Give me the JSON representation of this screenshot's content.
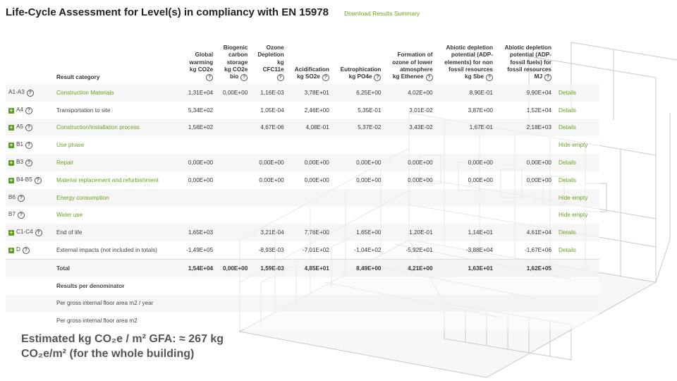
{
  "header": {
    "title": "Life-Cycle Assessment for Level(s) in compliancy with EN 15978",
    "download_link": "Download Results Summary"
  },
  "table": {
    "category_header": "Result category",
    "columns": [
      [
        "Global",
        "warming",
        "kg CO2e"
      ],
      [
        "Biogenic",
        "carbon",
        "storage",
        "kg CO2e",
        "bio"
      ],
      [
        "Ozone",
        "Depletion",
        "kg",
        "CFC11e"
      ],
      [
        "Acidification",
        "kg SO2e"
      ],
      [
        "Eutrophication",
        "kg PO4e"
      ],
      [
        "Formation of",
        "ozone of lower",
        "atmosphere",
        "kg Ethenee"
      ],
      [
        "Abiotic depletion",
        "potential (ADP-",
        "elements) for non",
        "fossil resources",
        "kg Sbe"
      ],
      [
        "Abiotic depletion",
        "potential (ADP-",
        "fossil fuels) for",
        "fossil resources",
        "MJ"
      ]
    ],
    "rows": [
      {
        "stage": "A1-A3",
        "expand": false,
        "help": true,
        "category": "Construction Materials",
        "link": true,
        "values": [
          "1,31E+04",
          "0,00E+00",
          "1,16E-03",
          "3,78E+01",
          "6,25E+00",
          "4,02E+00",
          "8,90E-01",
          "9,90E+04"
        ],
        "action": "Details"
      },
      {
        "stage": "A4",
        "expand": true,
        "help": true,
        "category": "Transportation to site",
        "link": false,
        "values": [
          "5,34E+02",
          "",
          "1,05E-04",
          "2,46E+00",
          "5,35E-01",
          "3,01E-02",
          "3,87E+00",
          "1,52E+04"
        ],
        "action": "Details"
      },
      {
        "stage": "A5",
        "expand": true,
        "help": true,
        "category": "Construction/installation process",
        "link": true,
        "values": [
          "1,56E+02",
          "",
          "4,67E-06",
          "4,08E-01",
          "5,37E-02",
          "3,43E-02",
          "1,67E-01",
          "2,18E+03"
        ],
        "action": "Details"
      },
      {
        "stage": "B1",
        "expand": true,
        "help": true,
        "category": "Use phase",
        "link": true,
        "values": [
          "",
          "",
          "",
          "",
          "",
          "",
          "",
          ""
        ],
        "action": "Hide empty"
      },
      {
        "stage": "B3",
        "expand": true,
        "help": true,
        "category": "Repair",
        "link": true,
        "values": [
          "0,00E+00",
          "",
          "0,00E+00",
          "0,00E+00",
          "0,00E+00",
          "0,00E+00",
          "0,00E+00",
          "0,00E+00"
        ],
        "action": "Details"
      },
      {
        "stage": "B4-B5",
        "expand": true,
        "help": true,
        "category": "Material replacement and refurbishment",
        "link": true,
        "values": [
          "0,00E+00",
          "",
          "0,00E+00",
          "0,00E+00",
          "0,00E+00",
          "0,00E+00",
          "0,00E+00",
          "0,00E+00"
        ],
        "action": "Details"
      },
      {
        "stage": "B6",
        "expand": false,
        "help": true,
        "category": "Energy consumption",
        "link": true,
        "values": [
          "",
          "",
          "",
          "",
          "",
          "",
          "",
          ""
        ],
        "action": "Hide empty"
      },
      {
        "stage": "B7",
        "expand": false,
        "help": true,
        "category": "Water use",
        "link": true,
        "values": [
          "",
          "",
          "",
          "",
          "",
          "",
          "",
          ""
        ],
        "action": "Hide empty"
      },
      {
        "stage": "C1-C4",
        "expand": true,
        "help": true,
        "category": "End of life",
        "link": false,
        "values": [
          "1,65E+03",
          "",
          "3,21E-04",
          "7,76E+00",
          "1,65E+00",
          "1,20E-01",
          "1,14E+01",
          "4,61E+04"
        ],
        "action": "Details"
      },
      {
        "stage": "D",
        "expand": true,
        "help": true,
        "category": "External impacts (not included in totals)",
        "link": false,
        "values": [
          "-1,49E+05",
          "",
          "-8,93E-03",
          "-7,01E+02",
          "-1,04E+02",
          "-5,92E+01",
          "-3,88E+04",
          "-1,67E+06"
        ],
        "action": "Details"
      },
      {
        "stage": "",
        "expand": false,
        "help": false,
        "category": "Total",
        "link": false,
        "bold": true,
        "values": [
          "1,54E+04",
          "0,00E+00",
          "1,59E-03",
          "4,85E+01",
          "8,49E+00",
          "4,21E+00",
          "1,63E+01",
          "1,62E+05"
        ],
        "action": ""
      },
      {
        "stage": "",
        "expand": false,
        "help": false,
        "category": "Results per denominator",
        "link": false,
        "bold": true,
        "values": [
          "",
          "",
          "",
          "",
          "",
          "",
          "",
          ""
        ],
        "action": ""
      },
      {
        "stage": "",
        "expand": false,
        "help": false,
        "category": "Per gross internal floor area m2 / year",
        "link": false,
        "values": [
          "",
          "",
          "",
          "",
          "",
          "",
          "",
          ""
        ],
        "action": ""
      },
      {
        "stage": "",
        "expand": false,
        "help": false,
        "category": "Per gross internal floor area m2",
        "link": false,
        "values": [
          "",
          "",
          "",
          "",
          "",
          "",
          "",
          ""
        ],
        "action": ""
      }
    ]
  },
  "footer_note": {
    "line1": "Estimated kg CO₂e / m² GFA: ≈ 267 kg",
    "line2": "CO₂e/m² (for the whole building)"
  },
  "colors": {
    "accent": "#6aa11e",
    "plus_icon": "#5b9b1e"
  },
  "icons": {
    "expand": "plus-square-icon",
    "help": "question-circle-icon"
  }
}
